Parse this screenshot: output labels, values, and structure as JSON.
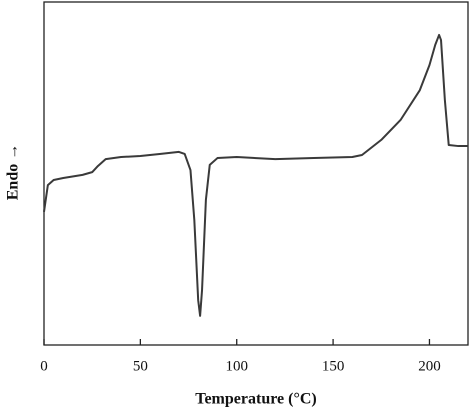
{
  "chart_data": {
    "type": "line",
    "xlabel": "Temperature (°C)",
    "ylabel": "Endo →",
    "xlim": [
      0,
      220
    ],
    "xticks": [
      0,
      50,
      100,
      150,
      200
    ],
    "ylim": [
      0,
      100
    ],
    "series": [
      {
        "color": "#3a3a3a",
        "x": [
          0,
          2,
          5,
          10,
          20,
          25,
          28,
          32,
          40,
          50,
          60,
          70,
          73,
          76,
          78,
          80,
          81,
          82,
          84,
          86,
          90,
          100,
          120,
          140,
          160,
          165,
          175,
          185,
          195,
          200,
          203,
          205,
          206,
          208,
          210,
          215,
          220
        ],
        "values": [
          38.8,
          46.6,
          48.1,
          48.7,
          49.6,
          50.4,
          52.2,
          54.2,
          54.8,
          55.1,
          55.7,
          56.3,
          55.7,
          51.0,
          36.4,
          13.1,
          8.5,
          16.0,
          42.3,
          52.5,
          54.5,
          54.8,
          54.2,
          54.5,
          54.8,
          55.4,
          59.8,
          65.6,
          74.3,
          81.6,
          87.5,
          90.4,
          88.9,
          71.4,
          58.3,
          58.0,
          58.0
        ]
      }
    ]
  }
}
